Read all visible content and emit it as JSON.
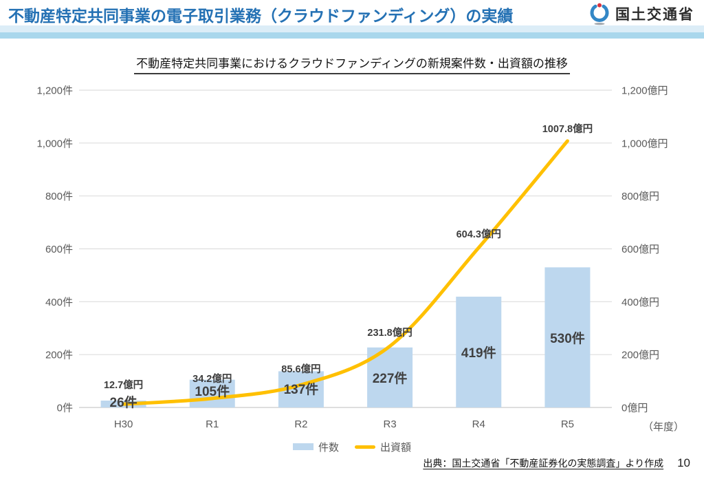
{
  "header": {
    "title": "不動産特定共同事業の電子取引業務（クラウドファンディング）の実績",
    "org_name": "国土交通省",
    "accent_color": "#2471b4"
  },
  "chart": {
    "title": "不動産特定共同事業におけるクラウドファンディングの新規案件数・出資額の推移",
    "x_unit": "（年度）",
    "legend": {
      "bar": "件数",
      "line": "出資額"
    }
  },
  "chart_data": {
    "type": "combo",
    "categories": [
      "H30",
      "R1",
      "R2",
      "R3",
      "R4",
      "R5"
    ],
    "series": [
      {
        "name": "件数",
        "type": "bar",
        "axis": "left",
        "values": [
          26,
          105,
          137,
          227,
          419,
          530
        ],
        "labels": [
          "26件",
          "105件",
          "137件",
          "227件",
          "419件",
          "530件"
        ],
        "color": "#bdd7ee"
      },
      {
        "name": "出資額",
        "type": "line",
        "axis": "right",
        "values": [
          12.7,
          34.2,
          85.6,
          231.8,
          604.3,
          1007.8
        ],
        "labels": [
          "12.7億円",
          "34.2億円",
          "85.6億円",
          "231.8億円",
          "604.3億円",
          "1007.8億円"
        ],
        "color": "#ffc000"
      }
    ],
    "left_axis": {
      "unit": "件",
      "min": 0,
      "max": 1200,
      "ticks": [
        "0件",
        "200件",
        "400件",
        "600件",
        "800件",
        "1,000件",
        "1,200件"
      ]
    },
    "right_axis": {
      "unit": "億円",
      "min": 0,
      "max": 1200,
      "ticks": [
        "0億円",
        "200億円",
        "400億円",
        "600億円",
        "800億円",
        "1,000億円",
        "1,200億円"
      ]
    },
    "grid": true,
    "legend_position": "bottom"
  },
  "footer": {
    "source": "出典：国土交通省「不動産証券化の実態調査」より作成",
    "page_number": "10"
  }
}
